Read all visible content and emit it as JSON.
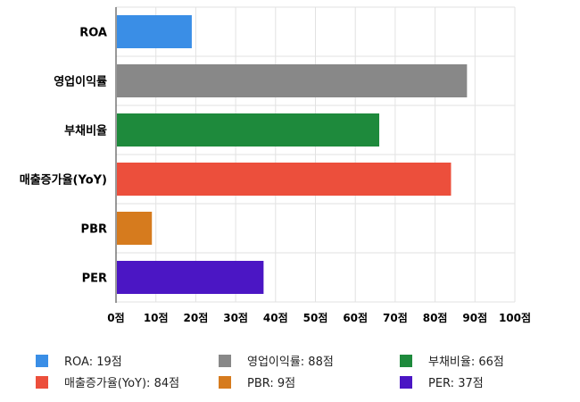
{
  "chart_data": {
    "type": "bar",
    "orientation": "horizontal",
    "categories": [
      "ROA",
      "영업이익률",
      "부채비율",
      "매출증가율(YoY)",
      "PBR",
      "PER"
    ],
    "values": [
      19,
      88,
      66,
      84,
      9,
      37
    ],
    "colors": [
      "#3a8ee6",
      "#888888",
      "#1e8a3c",
      "#ec4f3c",
      "#d67b1e",
      "#4b16c4"
    ],
    "xlim": [
      0,
      100
    ],
    "xticks": [
      "0점",
      "10점",
      "20점",
      "30점",
      "40점",
      "50점",
      "60점",
      "70점",
      "80점",
      "90점",
      "100점"
    ],
    "grid": true,
    "legend_placement": "bottom"
  },
  "legend": [
    {
      "label": "ROA: 19점",
      "color": "#3a8ee6"
    },
    {
      "label": "영업이익률: 88점",
      "color": "#888888"
    },
    {
      "label": "부채비율: 66점",
      "color": "#1e8a3c"
    },
    {
      "label": "매출증가율(YoY): 84점",
      "color": "#ec4f3c"
    },
    {
      "label": "PBR: 9점",
      "color": "#d67b1e"
    },
    {
      "label": "PER: 37점",
      "color": "#4b16c4"
    }
  ]
}
